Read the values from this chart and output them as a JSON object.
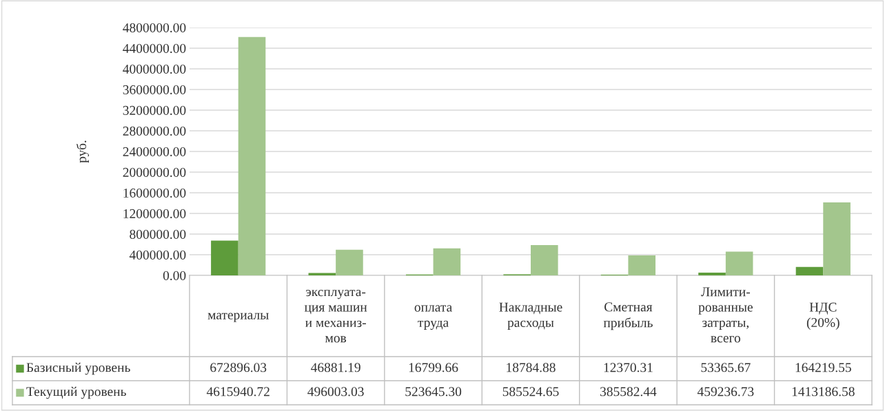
{
  "chart_data": {
    "type": "bar",
    "ylabel": "руб.",
    "categories": [
      "материалы",
      "эксплуата-\nция машин\nи механиз-\nмов",
      "оплата\nтруда",
      "Накладные\nрасходы",
      "Сметная\nприбыль",
      "Лимити-\nрованные\nзатраты,\nвсего",
      "НДС\n(20%)"
    ],
    "series": [
      {
        "name": "Базисный уровень",
        "color": "#5e9c3b",
        "values": [
          672896.03,
          46881.19,
          16799.66,
          18784.88,
          12370.31,
          53365.67,
          164219.55
        ],
        "value_labels": [
          "672896.03",
          "46881.19",
          "16799.66",
          "18784.88",
          "12370.31",
          "53365.67",
          "164219.55"
        ]
      },
      {
        "name": "Текущий уровень",
        "color": "#a3c68d",
        "values": [
          4615940.72,
          496003.03,
          523645.3,
          585524.65,
          385582.44,
          459236.73,
          1413186.58
        ],
        "value_labels": [
          "4615940.72",
          "496003.03",
          "523645.30",
          "585524.65",
          "385582.44",
          "459236.73",
          "1413186.58"
        ]
      }
    ],
    "ylim": [
      0,
      4800000
    ],
    "yticks": [
      {
        "value": 0,
        "label": "0.00"
      },
      {
        "value": 400000,
        "label": "400000.00"
      },
      {
        "value": 800000,
        "label": "800000.00"
      },
      {
        "value": 1200000,
        "label": "1200000.00"
      },
      {
        "value": 1600000,
        "label": "1600000.00"
      },
      {
        "value": 2000000,
        "label": "2000000.00"
      },
      {
        "value": 2400000,
        "label": "2400000.00"
      },
      {
        "value": 2800000,
        "label": "2800000.00"
      },
      {
        "value": 3200000,
        "label": "3200000.00"
      },
      {
        "value": 3600000,
        "label": "3600000.00"
      },
      {
        "value": 4000000,
        "label": "4000000.00"
      },
      {
        "value": 4400000,
        "label": "4400000.00"
      },
      {
        "value": 4800000,
        "label": "4800000.00"
      }
    ],
    "grid": "y",
    "legend": "bottom"
  }
}
